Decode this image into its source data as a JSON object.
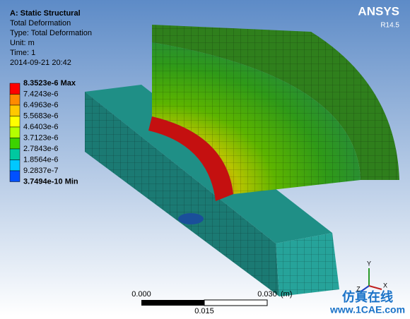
{
  "header": {
    "title": "A: Static Structural",
    "lines": [
      "Total Deformation",
      "Type: Total Deformation",
      "Unit: m",
      "Time: 1",
      "2014-09-21 20:42"
    ]
  },
  "logo": {
    "name": "ANSYS",
    "version": "R14.5"
  },
  "legend": {
    "labels": [
      "8.3523e-6 Max",
      "7.4243e-6",
      "6.4963e-6",
      "5.5683e-6",
      "4.6403e-6",
      "3.7123e-6",
      "2.7843e-6",
      "1.8564e-6",
      "9.2837e-7",
      "3.7494e-10 Min"
    ]
  },
  "scale": {
    "start": "0.000",
    "end": "0.030",
    "unit": "(m)",
    "mid": "0.015"
  },
  "triad": {
    "labels": [
      "Y",
      "Z",
      "X"
    ]
  },
  "watermark": {
    "title": "仿真在线",
    "url": "www.1CAE.com"
  }
}
